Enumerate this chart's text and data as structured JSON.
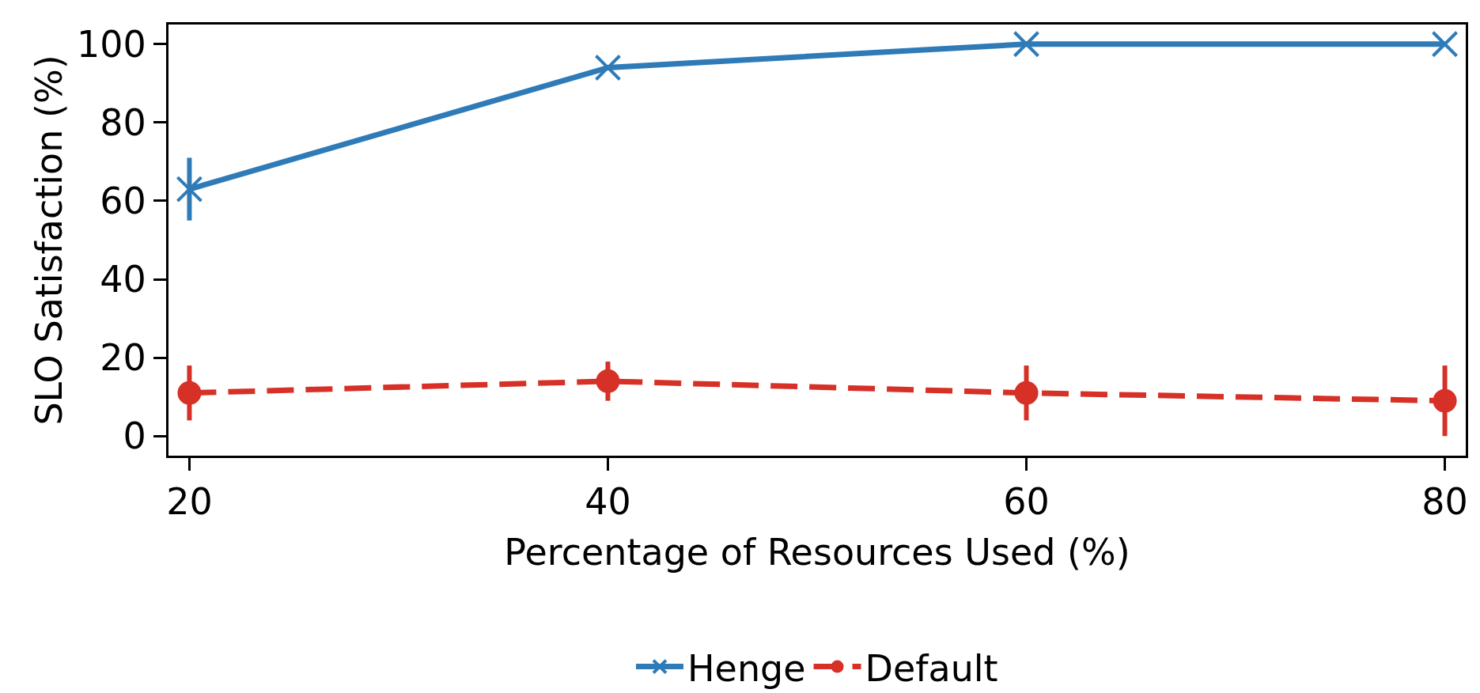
{
  "chart_data": {
    "type": "line",
    "xlabel": "Percentage of Resources Used (%)",
    "ylabel": "SLO Satisfaction (%)",
    "x": [
      20,
      40,
      60,
      80
    ],
    "series": [
      {
        "name": "Henge",
        "color": "#2e7bb8",
        "values": [
          63,
          94,
          100,
          100
        ],
        "errors": [
          8,
          null,
          null,
          null
        ],
        "marker": "cross",
        "line_style": "solid"
      },
      {
        "name": "Default",
        "color": "#d63027",
        "values": [
          11,
          14,
          11,
          9
        ],
        "errors": [
          7,
          5,
          7,
          9
        ],
        "marker": "circle",
        "line_style": "dashed"
      }
    ],
    "xlim": [
      19,
      81
    ],
    "xticks": [
      20,
      40,
      60,
      80
    ],
    "ylim": [
      -5,
      105
    ],
    "yticks": [
      0,
      20,
      40,
      60,
      80,
      100
    ],
    "legend": "bottom"
  }
}
